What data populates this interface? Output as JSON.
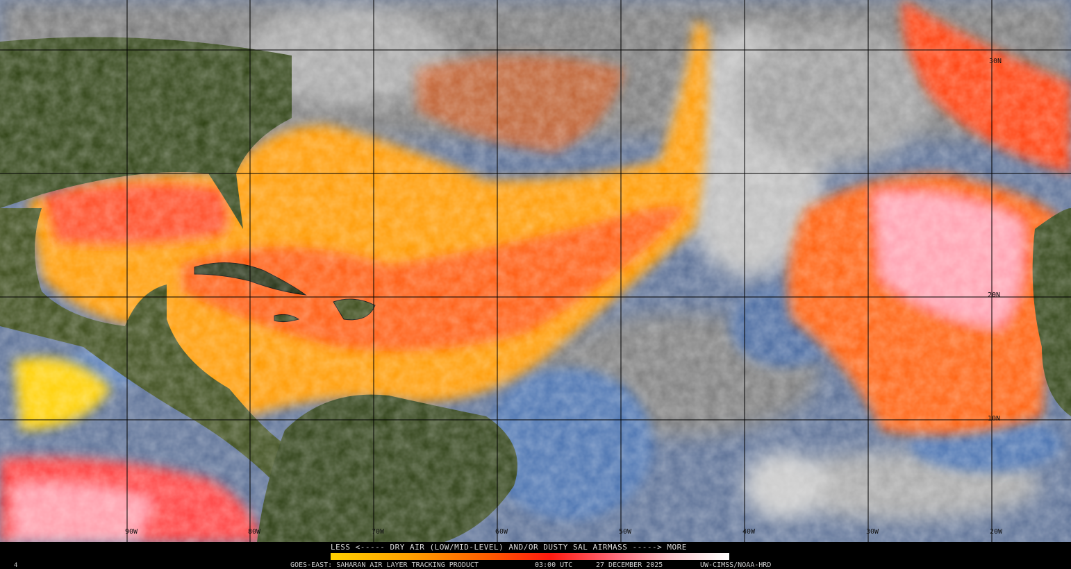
{
  "legend": {
    "title": "LESS <----- DRY AIR (LOW/MID-LEVEL) AND/OR DUSTY SAL AIRMASS -----> MORE",
    "colors": [
      "#ffd000",
      "#ffa000",
      "#ff5a00",
      "#ff1a10",
      "#ff7080",
      "#ffc0c8",
      "#ffffff"
    ]
  },
  "footer": {
    "product": "GOES-EAST: SAHARAN AIR LAYER TRACKING PRODUCT",
    "time": "03:00 UTC",
    "date": "27 DECEMBER 2025",
    "credit": "UW-CIMSS/NOAA-HRD",
    "corner_mark": "4"
  },
  "grid": {
    "longitude_labels": [
      "90W",
      "80W",
      "70W",
      "60W",
      "50W",
      "40W",
      "30W",
      "20W"
    ],
    "latitude_labels": [
      "30N",
      "20N",
      "10N"
    ]
  },
  "map_colors": {
    "land": "#2e3d12",
    "ocean": "#4a6fa8",
    "cloud": "#9a9a9a",
    "sal_low": "#ffd000",
    "sal_high": "#ff3020"
  }
}
